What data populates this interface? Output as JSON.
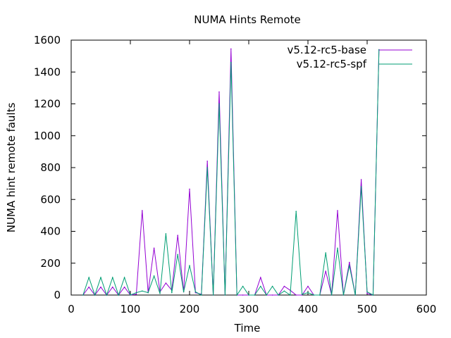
{
  "chart_data": {
    "type": "line",
    "title": "NUMA Hints Remote",
    "xlabel": "Time",
    "ylabel": "NUMA hint remote faults",
    "xlim": [
      0,
      600
    ],
    "ylim": [
      0,
      1600
    ],
    "x_ticks": [
      "0",
      "100",
      "200",
      "300",
      "400",
      "500",
      "600"
    ],
    "y_ticks": [
      "0",
      "200",
      "400",
      "600",
      "800",
      "1000",
      "1200",
      "1400",
      "1600"
    ],
    "grid": false,
    "legend_position": "top-right",
    "series": [
      {
        "name": "v5.12-rc5-base",
        "color": "#9400d3",
        "points": [
          [
            20,
            0
          ],
          [
            30,
            50
          ],
          [
            40,
            0
          ],
          [
            50,
            50
          ],
          [
            60,
            0
          ],
          [
            70,
            50
          ],
          [
            80,
            0
          ],
          [
            90,
            50
          ],
          [
            100,
            0
          ],
          [
            110,
            5
          ],
          [
            120,
            530
          ],
          [
            130,
            15
          ],
          [
            140,
            295
          ],
          [
            150,
            20
          ],
          [
            160,
            75
          ],
          [
            170,
            30
          ],
          [
            180,
            375
          ],
          [
            190,
            20
          ],
          [
            200,
            665
          ],
          [
            210,
            15
          ],
          [
            220,
            5
          ],
          [
            230,
            840
          ],
          [
            240,
            0
          ],
          [
            250,
            1275
          ],
          [
            260,
            0
          ],
          [
            270,
            1545
          ],
          [
            280,
            0
          ],
          [
            290,
            0
          ],
          [
            300,
            0
          ],
          [
            310,
            0
          ],
          [
            320,
            110
          ],
          [
            330,
            0
          ],
          [
            340,
            0
          ],
          [
            350,
            0
          ],
          [
            360,
            55
          ],
          [
            370,
            30
          ],
          [
            380,
            0
          ],
          [
            390,
            0
          ],
          [
            400,
            55
          ],
          [
            410,
            0
          ],
          [
            420,
            0
          ],
          [
            430,
            150
          ],
          [
            440,
            0
          ],
          [
            450,
            530
          ],
          [
            460,
            0
          ],
          [
            470,
            205
          ],
          [
            480,
            0
          ],
          [
            490,
            725
          ],
          [
            500,
            10
          ],
          [
            510,
            0
          ],
          [
            520,
            1540
          ]
        ]
      },
      {
        "name": "v5.12-rc5-spf",
        "color": "#009e73",
        "points": [
          [
            20,
            0
          ],
          [
            30,
            110
          ],
          [
            40,
            0
          ],
          [
            50,
            110
          ],
          [
            60,
            0
          ],
          [
            70,
            110
          ],
          [
            80,
            0
          ],
          [
            90,
            110
          ],
          [
            100,
            0
          ],
          [
            110,
            15
          ],
          [
            120,
            25
          ],
          [
            130,
            15
          ],
          [
            140,
            120
          ],
          [
            150,
            10
          ],
          [
            160,
            385
          ],
          [
            170,
            15
          ],
          [
            180,
            255
          ],
          [
            190,
            20
          ],
          [
            200,
            185
          ],
          [
            210,
            20
          ],
          [
            220,
            0
          ],
          [
            230,
            800
          ],
          [
            240,
            0
          ],
          [
            250,
            1200
          ],
          [
            260,
            0
          ],
          [
            270,
            1460
          ],
          [
            280,
            0
          ],
          [
            290,
            55
          ],
          [
            300,
            0
          ],
          [
            310,
            0
          ],
          [
            320,
            55
          ],
          [
            330,
            0
          ],
          [
            340,
            55
          ],
          [
            350,
            0
          ],
          [
            360,
            25
          ],
          [
            370,
            0
          ],
          [
            380,
            525
          ],
          [
            390,
            5
          ],
          [
            400,
            15
          ],
          [
            410,
            0
          ],
          [
            420,
            0
          ],
          [
            430,
            265
          ],
          [
            440,
            0
          ],
          [
            450,
            295
          ],
          [
            460,
            0
          ],
          [
            470,
            185
          ],
          [
            480,
            0
          ],
          [
            490,
            680
          ],
          [
            500,
            20
          ],
          [
            510,
            0
          ],
          [
            520,
            1540
          ]
        ]
      }
    ]
  }
}
